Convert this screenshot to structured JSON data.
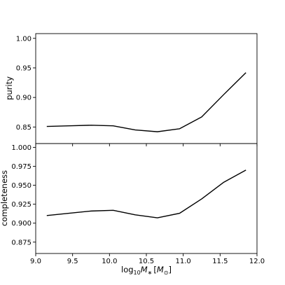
{
  "chart_data": {
    "type": "line",
    "x": [
      9.15,
      9.45,
      9.75,
      10.05,
      10.35,
      10.65,
      10.95,
      11.25,
      11.55,
      11.85
    ],
    "xlabel_prefix": "log",
    "xlabel_sub": "10",
    "xlabel_sym": "M",
    "xlabel_star": "∗",
    "xlabel_open": "[",
    "xlabel_M": "M",
    "xlabel_sun": "⊙",
    "xlabel_close": "]",
    "xlim": [
      9.0,
      12.0
    ],
    "xticks": [
      "9.0",
      "9.5",
      "10.0",
      "10.5",
      "11.0",
      "11.5",
      "12.0"
    ],
    "xtick_values": [
      9.0,
      9.5,
      10.0,
      10.5,
      11.0,
      11.5,
      12.0
    ],
    "panels": [
      {
        "ylabel": "purity",
        "ylim": [
          0.822,
          1.008
        ],
        "yticks": [
          "0.85",
          "0.90",
          "0.95",
          "1.00"
        ],
        "ytick_values": [
          0.85,
          0.9,
          0.95,
          1.0
        ],
        "values": [
          0.851,
          0.852,
          0.853,
          0.852,
          0.845,
          0.842,
          0.847,
          0.867,
          0.905,
          0.942
        ]
      },
      {
        "ylabel": "completeness",
        "ylim": [
          0.86,
          1.005
        ],
        "yticks": [
          "0.875",
          "0.900",
          "0.925",
          "0.950",
          "0.975",
          "1.000"
        ],
        "ytick_values": [
          0.875,
          0.9,
          0.925,
          0.95,
          0.975,
          1.0
        ],
        "values": [
          0.91,
          0.913,
          0.916,
          0.917,
          0.911,
          0.907,
          0.913,
          0.932,
          0.954,
          0.97
        ]
      }
    ],
    "color": "#000000"
  }
}
